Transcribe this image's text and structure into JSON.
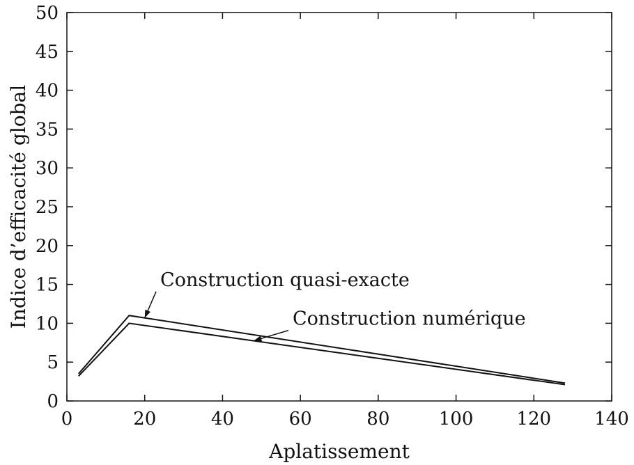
{
  "chart_data": {
    "type": "line",
    "title": "",
    "xlabel": "Aplatissement",
    "ylabel": "Indice d’efficacité global",
    "xlim": [
      0,
      140
    ],
    "ylim": [
      0,
      50
    ],
    "xticks": [
      0,
      20,
      40,
      60,
      80,
      100,
      120,
      140
    ],
    "yticks": [
      0,
      5,
      10,
      15,
      20,
      25,
      30,
      35,
      40,
      45,
      50
    ],
    "grid": false,
    "legend": "none",
    "series": [
      {
        "name": "Construction quasi-exacte",
        "x": [
          3,
          16,
          128
        ],
        "y": [
          3.5,
          11.0,
          2.3
        ],
        "color": "#111111"
      },
      {
        "name": "Construction numérique",
        "x": [
          3,
          16,
          128
        ],
        "y": [
          3.2,
          10.0,
          2.1
        ],
        "color": "#111111"
      }
    ],
    "annotations": [
      {
        "text": "Construction quasi-exacte",
        "target_series": 0,
        "target_x": 20,
        "label_x": 24,
        "label_y": 14.8
      },
      {
        "text": "Construction numérique",
        "target_series": 1,
        "target_x": 48,
        "label_x": 58,
        "label_y": 9.8
      }
    ]
  }
}
